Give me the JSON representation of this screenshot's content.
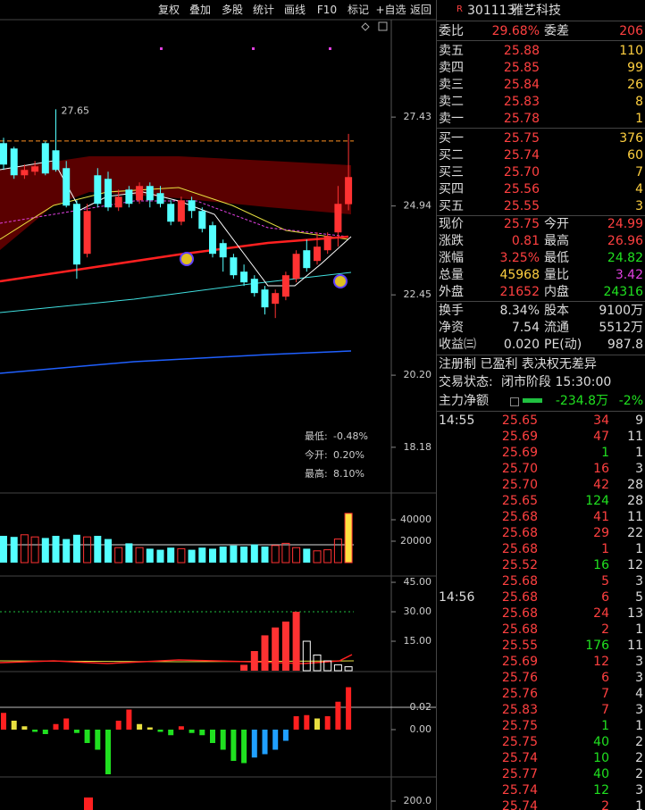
{
  "toolbar": [
    "复权",
    "叠加",
    "多股",
    "统计",
    "画线",
    "F10",
    "标记",
    "+自选",
    "返回"
  ],
  "stock": {
    "badge": "R",
    "code": "301113",
    "name": "雅艺科技"
  },
  "commission": {
    "ratio_label": "委比",
    "ratio": "29.68%",
    "diff_label": "委差",
    "diff": "206"
  },
  "asks": [
    {
      "label": "卖五",
      "price": "25.88",
      "volume": "110"
    },
    {
      "label": "卖四",
      "price": "25.85",
      "volume": "99"
    },
    {
      "label": "卖三",
      "price": "25.84",
      "volume": "26"
    },
    {
      "label": "卖二",
      "price": "25.83",
      "volume": "8"
    },
    {
      "label": "卖一",
      "price": "25.78",
      "volume": "1"
    }
  ],
  "bids": [
    {
      "label": "买一",
      "price": "25.75",
      "volume": "376"
    },
    {
      "label": "买二",
      "price": "25.74",
      "volume": "60"
    },
    {
      "label": "买三",
      "price": "25.70",
      "volume": "7"
    },
    {
      "label": "买四",
      "price": "25.56",
      "volume": "4"
    },
    {
      "label": "买五",
      "price": "25.55",
      "volume": "3"
    }
  ],
  "quote": [
    [
      {
        "label": "现价",
        "value": "25.75",
        "color": "#ff4040"
      },
      {
        "label": "今开",
        "value": "24.99",
        "color": "#ff4040"
      }
    ],
    [
      {
        "label": "涨跌",
        "value": "0.81",
        "color": "#ff4040"
      },
      {
        "label": "最高",
        "value": "26.96",
        "color": "#ff4040"
      }
    ],
    [
      {
        "label": "涨幅",
        "value": "3.25%",
        "color": "#ff4040"
      },
      {
        "label": "最低",
        "value": "24.82",
        "color": "#20e020"
      }
    ],
    [
      {
        "label": "总量",
        "value": "45968",
        "color": "#ffd040"
      },
      {
        "label": "量比",
        "value": "3.42",
        "color": "#e040e0"
      }
    ],
    [
      {
        "label": "外盘",
        "value": "21652",
        "color": "#ff4040"
      },
      {
        "label": "内盘",
        "value": "24316",
        "color": "#20e020"
      }
    ]
  ],
  "fundamentals": [
    [
      {
        "label": "换手",
        "value": "8.34%"
      },
      {
        "label": "股本",
        "value": "9100万"
      }
    ],
    [
      {
        "label": "净资",
        "value": "7.54"
      },
      {
        "label": "流通",
        "value": "5512万"
      }
    ],
    [
      {
        "label": "收益㈢",
        "value": "0.020"
      },
      {
        "label": "PE(动)",
        "value": "987.8"
      }
    ]
  ],
  "tags": "注册制 已盈利 表决权无差异",
  "status": {
    "label": "交易状态:",
    "value": "闭市阶段 15:30:00"
  },
  "main_flow": {
    "label": "主力净额",
    "value": "-234.8万",
    "pct": "-2%"
  },
  "ticks": [
    {
      "time": "14:55",
      "rows": [
        {
          "price": "25.65",
          "volume": "34",
          "count": "9",
          "color": "#ff4040"
        },
        {
          "price": "25.69",
          "volume": "47",
          "count": "11",
          "color": "#ff4040"
        },
        {
          "price": "25.69",
          "volume": "1",
          "count": "1",
          "color": "#20e020"
        },
        {
          "price": "25.70",
          "volume": "16",
          "count": "3",
          "color": "#ff4040"
        },
        {
          "price": "25.70",
          "volume": "42",
          "count": "28",
          "color": "#ff4040"
        },
        {
          "price": "25.65",
          "volume": "124",
          "count": "28",
          "color": "#20e020"
        },
        {
          "price": "25.68",
          "volume": "41",
          "count": "11",
          "color": "#ff4040"
        },
        {
          "price": "25.68",
          "volume": "29",
          "count": "22",
          "color": "#ff4040"
        },
        {
          "price": "25.68",
          "volume": "1",
          "count": "1",
          "color": "#ff4040"
        },
        {
          "price": "25.52",
          "volume": "16",
          "count": "12",
          "color": "#20e020"
        },
        {
          "price": "25.68",
          "volume": "5",
          "count": "3",
          "color": "#ff4040"
        }
      ]
    },
    {
      "time": "14:56",
      "rows": [
        {
          "price": "25.68",
          "volume": "6",
          "count": "5",
          "color": "#ff4040"
        },
        {
          "price": "25.68",
          "volume": "24",
          "count": "13",
          "color": "#ff4040"
        },
        {
          "price": "25.68",
          "volume": "2",
          "count": "1",
          "color": "#ff4040"
        },
        {
          "price": "25.55",
          "volume": "176",
          "count": "11",
          "color": "#20e020"
        },
        {
          "price": "25.69",
          "volume": "12",
          "count": "3",
          "color": "#ff4040"
        },
        {
          "price": "25.76",
          "volume": "6",
          "count": "3",
          "color": "#ff4040"
        },
        {
          "price": "25.76",
          "volume": "7",
          "count": "4",
          "color": "#ff4040"
        },
        {
          "price": "25.83",
          "volume": "7",
          "count": "3",
          "color": "#ff4040"
        },
        {
          "price": "25.75",
          "volume": "1",
          "count": "1",
          "color": "#20e020"
        },
        {
          "price": "25.75",
          "volume": "40",
          "count": "2",
          "color": "#20e020"
        },
        {
          "price": "25.74",
          "volume": "10",
          "count": "2",
          "color": "#20e020"
        },
        {
          "price": "25.77",
          "volume": "40",
          "count": "2",
          "color": "#20e020"
        },
        {
          "price": "25.74",
          "volume": "12",
          "count": "3",
          "color": "#20e020"
        },
        {
          "price": "25.74",
          "volume": "2",
          "count": "1",
          "color": "#ff4040"
        }
      ]
    }
  ],
  "kline": {
    "ylim": [
      16.9,
      30.16
    ],
    "yticks": [
      27.43,
      24.94,
      22.45,
      {
        "value": 20.2,
        "label": "20.20"
      },
      18.18
    ],
    "high_label": "27.65",
    "level": 26.76,
    "up_color": "#ff3232",
    "down_color": "#54ffff",
    "legend": [
      {
        "label": "最低:",
        "value": "-0.48%",
        "color": "#30e030"
      },
      {
        "label": "今开:",
        "value": "0.20%",
        "color": "#ffe040"
      },
      {
        "label": "最高:",
        "value": "8.10%",
        "color": "#ff3070"
      }
    ],
    "open": [
      26.7,
      26.55,
      25.8,
      25.9,
      26.7,
      26.5,
      26.0,
      25.0,
      23.6,
      25.8,
      25.7,
      24.9,
      25.4,
      25.1,
      25.5,
      25.3,
      25.0,
      24.5,
      25.1,
      24.8,
      24.4,
      23.9,
      23.5,
      23.1,
      22.9,
      22.6,
      22.2,
      22.4,
      22.9,
      23.7,
      23.4,
      23.7,
      24.2,
      24.99
    ],
    "close": [
      26.1,
      25.8,
      25.95,
      26.05,
      25.85,
      25.95,
      24.95,
      23.3,
      24.8,
      25.0,
      24.9,
      25.2,
      25.0,
      25.5,
      25.1,
      25.0,
      24.5,
      25.1,
      24.8,
      24.3,
      23.6,
      23.5,
      23.0,
      22.8,
      22.5,
      22.1,
      22.5,
      23.0,
      23.6,
      23.2,
      23.8,
      24.1,
      25.0,
      25.75
    ],
    "high": [
      26.85,
      26.6,
      26.1,
      26.2,
      26.75,
      27.65,
      26.2,
      25.1,
      25.0,
      26.0,
      25.9,
      25.4,
      25.5,
      25.6,
      25.6,
      25.5,
      25.1,
      25.2,
      25.2,
      24.9,
      24.5,
      24.0,
      23.6,
      23.3,
      23.0,
      22.7,
      22.6,
      23.1,
      23.7,
      24.0,
      24.2,
      24.2,
      25.5,
      26.96
    ],
    "low": [
      25.95,
      25.7,
      25.7,
      25.8,
      25.8,
      25.9,
      24.9,
      22.9,
      23.5,
      24.9,
      24.8,
      24.8,
      24.9,
      25.0,
      24.9,
      24.9,
      24.4,
      24.4,
      24.6,
      24.2,
      23.5,
      23.1,
      22.9,
      22.7,
      22.4,
      21.9,
      21.8,
      22.3,
      22.8,
      23.1,
      23.3,
      23.6,
      23.8,
      24.82
    ]
  },
  "volume": {
    "ylim": [
      -12500,
      65000
    ],
    "yticks": [
      40000,
      20000
    ],
    "values": [
      25000,
      24000,
      26000,
      24000,
      23000,
      25000,
      22000,
      26000,
      24000,
      25000,
      22000,
      14000,
      18000,
      14000,
      13000,
      12000,
      14000,
      13000,
      12000,
      14000,
      13000,
      15000,
      16000,
      15000,
      17000,
      15000,
      16000,
      18000,
      14000,
      13000,
      11000,
      12000,
      22000,
      45968
    ]
  },
  "indicator": {
    "ylim": [
      -0.45,
      48.2
    ],
    "yticks": [
      {
        "value": 45,
        "label": "45.00"
      },
      {
        "value": 30,
        "label": "30.00"
      },
      {
        "value": 15,
        "label": "15.00"
      }
    ],
    "values": [
      0,
      0,
      0,
      0,
      0,
      0,
      0,
      0,
      0,
      0,
      0,
      0,
      0,
      0,
      0,
      0,
      0,
      0,
      0,
      0,
      0,
      0,
      0,
      3,
      10,
      18,
      22,
      25,
      30,
      15,
      8,
      5,
      3,
      2
    ]
  },
  "oscillator": {
    "ylim": [
      -0.0424,
      0.052
    ],
    "yticks": [
      0.02,
      {
        "value": 0,
        "label": "0.00"
      }
    ],
    "values": [
      0.015,
      0.008,
      0.003,
      -0.002,
      -0.004,
      0.005,
      0.01,
      -0.003,
      -0.012,
      -0.018,
      -0.04,
      0.008,
      0.018,
      0.005,
      0.002,
      -0.002,
      -0.005,
      0.003,
      -0.003,
      -0.005,
      -0.012,
      -0.018,
      -0.028,
      -0.03,
      -0.025,
      -0.022,
      -0.018,
      -0.01,
      0.012,
      0.013,
      0.01,
      0.012,
      0.025,
      0.038
    ]
  },
  "bottom": {
    "ylim": [
      100,
      470
    ],
    "yticks": [
      {
        "value": 200,
        "label": "200.0"
      }
    ]
  }
}
